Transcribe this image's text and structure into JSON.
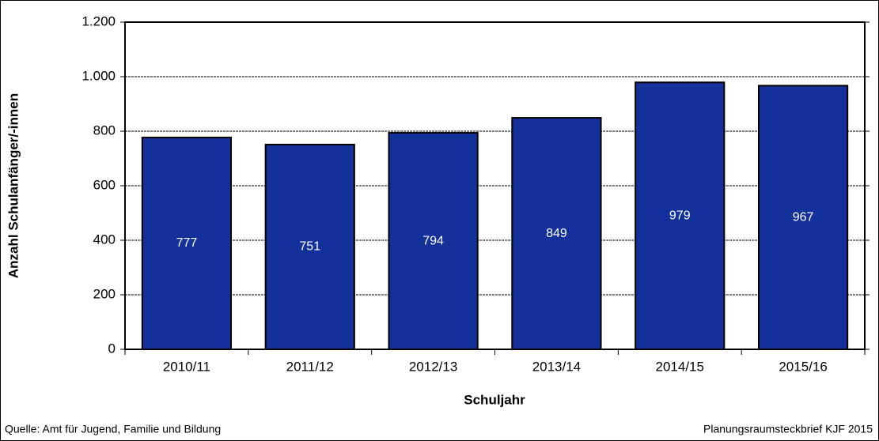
{
  "chart_data": {
    "type": "bar",
    "categories": [
      "2010/11",
      "2011/12",
      "2012/13",
      "2013/14",
      "2014/15",
      "2015/16"
    ],
    "values": [
      777,
      751,
      794,
      849,
      979,
      967
    ],
    "color": "#14309a",
    "ylim": [
      0,
      1200
    ],
    "yticks": [
      0,
      200,
      400,
      600,
      800,
      {
        "value": 1000,
        "label": "1.000"
      },
      {
        "value": 1200,
        "label": "1.200"
      }
    ],
    "grid": true,
    "y_label": "Anzahl Schulanfänger/-innen",
    "x_label": "Schuljahr",
    "source": "Quelle: Amt für Jugend, Familie und Bildung",
    "note": "Planungsraumsteckbrief KJF 2015"
  }
}
